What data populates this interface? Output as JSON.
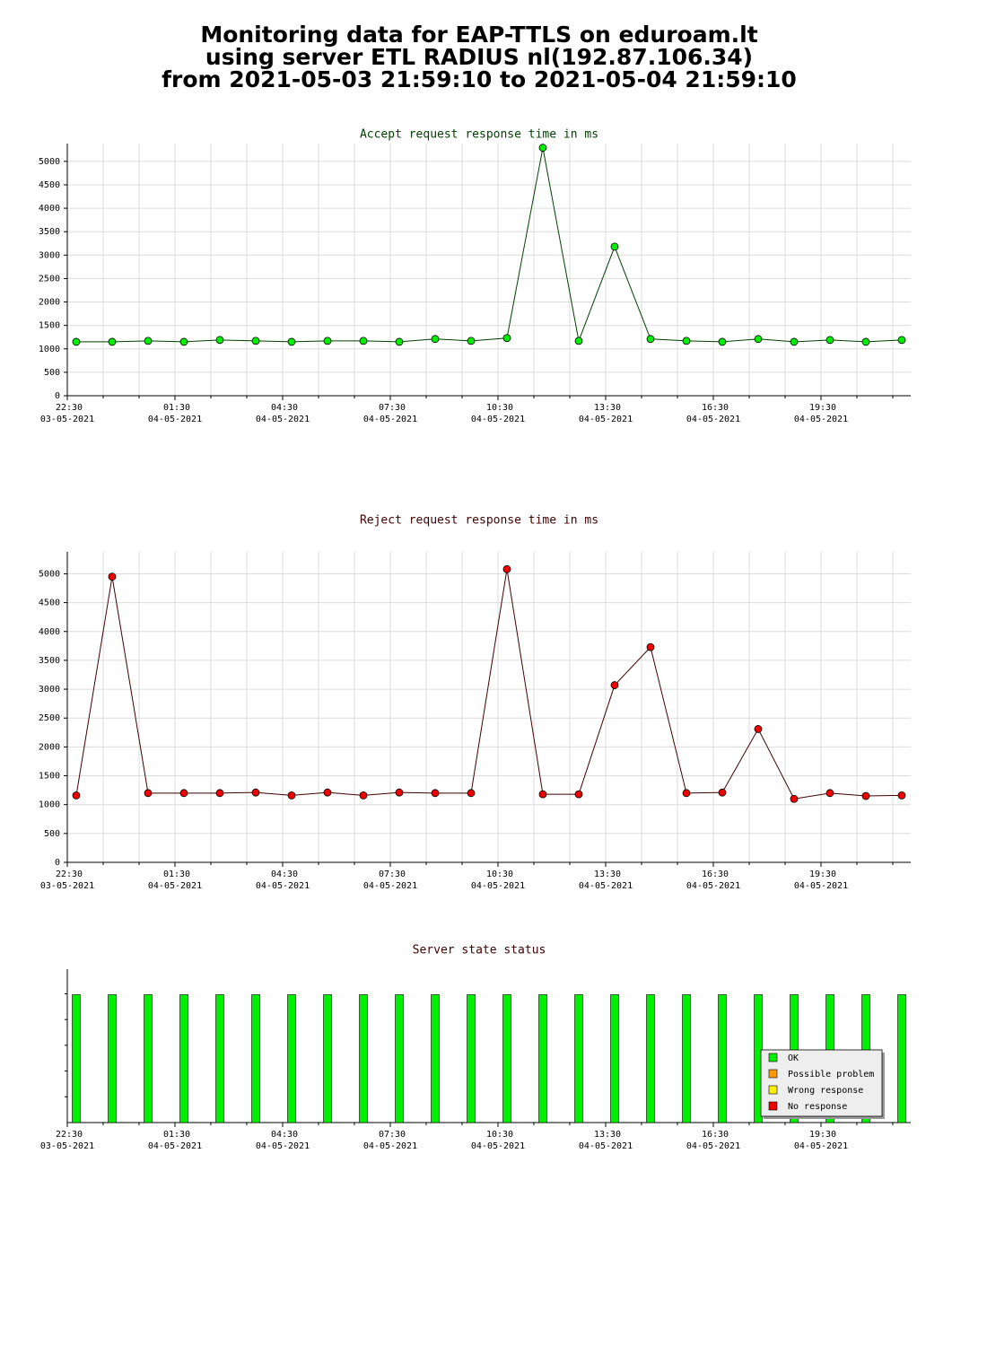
{
  "header": {
    "title_lines": [
      "Monitoring data for EAP-TTLS on eduroam.lt",
      "using server ETL RADIUS nl(192.87.106.34)",
      "from 2021-05-03 21:59:10 to 2021-05-04 21:59:10"
    ]
  },
  "chart_data": [
    {
      "type": "line",
      "title": "Accept request response time in ms",
      "title_color": "#004000",
      "categories": [
        "22:30",
        null,
        null,
        "01:30",
        null,
        null,
        "04:30",
        null,
        null,
        "07:30",
        null,
        null,
        "10:30",
        null,
        null,
        "13:30",
        null,
        null,
        "16:30",
        null,
        null,
        "19:30",
        null,
        null
      ],
      "dates": [
        "03-05-2021",
        null,
        null,
        "04-05-2021",
        null,
        null,
        "04-05-2021",
        null,
        null,
        "04-05-2021",
        null,
        null,
        "04-05-2021",
        null,
        null,
        "04-05-2021",
        null,
        null,
        "04-05-2021",
        null,
        null,
        "04-05-2021",
        null,
        null
      ],
      "values": [
        1150,
        1150,
        1170,
        1150,
        1190,
        1170,
        1150,
        1170,
        1170,
        1150,
        1210,
        1170,
        1230,
        5290,
        1170,
        3180,
        1210,
        1170,
        1150,
        1210,
        1150,
        1190,
        1150,
        1190
      ],
      "line_color": "#004000",
      "marker_color": "#00ee00",
      "ylim": [
        0,
        5380
      ],
      "yticks": [
        0,
        500,
        1000,
        1500,
        2000,
        2500,
        3000,
        3500,
        4000,
        4500,
        5000
      ],
      "grid": true
    },
    {
      "type": "line",
      "title": "Reject request response time in ms",
      "title_color": "#400000",
      "categories": [
        "22:30",
        null,
        null,
        "01:30",
        null,
        null,
        "04:30",
        null,
        null,
        "07:30",
        null,
        null,
        "10:30",
        null,
        null,
        "13:30",
        null,
        null,
        "16:30",
        null,
        null,
        "19:30",
        null,
        null
      ],
      "dates": [
        "03-05-2021",
        null,
        null,
        "04-05-2021",
        null,
        null,
        "04-05-2021",
        null,
        null,
        "04-05-2021",
        null,
        null,
        "04-05-2021",
        null,
        null,
        "04-05-2021",
        null,
        null,
        "04-05-2021",
        null,
        null,
        "04-05-2021",
        null,
        null
      ],
      "values": [
        1160,
        4950,
        1200,
        1200,
        1200,
        1210,
        1160,
        1210,
        1160,
        1210,
        1200,
        1200,
        5080,
        1180,
        1180,
        3070,
        3730,
        1200,
        1210,
        2310,
        1100,
        1200,
        1150,
        1160
      ],
      "line_color": "#400000",
      "marker_color": "#ee0000",
      "ylim": [
        0,
        5380
      ],
      "yticks": [
        0,
        500,
        1000,
        1500,
        2000,
        2500,
        3000,
        3500,
        4000,
        4500,
        5000
      ],
      "grid": true
    },
    {
      "type": "bar",
      "title": "Server state status",
      "title_color": "#400000",
      "categories": [
        "22:30",
        null,
        null,
        "01:30",
        null,
        null,
        "04:30",
        null,
        null,
        "07:30",
        null,
        null,
        "10:30",
        null,
        null,
        "13:30",
        null,
        null,
        "16:30",
        null,
        null,
        "19:30",
        null,
        null
      ],
      "dates": [
        "03-05-2021",
        null,
        null,
        "04-05-2021",
        null,
        null,
        "04-05-2021",
        null,
        null,
        "04-05-2021",
        null,
        null,
        "04-05-2021",
        null,
        null,
        "04-05-2021",
        null,
        null,
        "04-05-2021",
        null,
        null,
        "04-05-2021",
        null,
        null
      ],
      "series": [
        {
          "name": "OK",
          "color": "#00ee00",
          "values": [
            1,
            1,
            1,
            1,
            1,
            1,
            1,
            1,
            1,
            1,
            1,
            1,
            1,
            1,
            1,
            1,
            1,
            1,
            1,
            1,
            1,
            1,
            1,
            1
          ]
        },
        {
          "name": "Possible problem",
          "color": "#ff9900",
          "values": [
            0,
            0,
            0,
            0,
            0,
            0,
            0,
            0,
            0,
            0,
            0,
            0,
            0,
            0,
            0,
            0,
            0,
            0,
            0,
            0,
            0,
            0,
            0,
            0
          ]
        },
        {
          "name": "Wrong response",
          "color": "#ffee00",
          "values": [
            0,
            0,
            0,
            0,
            0,
            0,
            0,
            0,
            0,
            0,
            0,
            0,
            0,
            0,
            0,
            0,
            0,
            0,
            0,
            0,
            0,
            0,
            0,
            0
          ]
        },
        {
          "name": "No response",
          "color": "#ee0000",
          "values": [
            0,
            0,
            0,
            0,
            0,
            0,
            0,
            0,
            0,
            0,
            0,
            0,
            0,
            0,
            0,
            0,
            0,
            0,
            0,
            0,
            0,
            0,
            0,
            0
          ]
        }
      ],
      "ylim": [
        0,
        1.2
      ],
      "legend": "lower-right"
    }
  ]
}
